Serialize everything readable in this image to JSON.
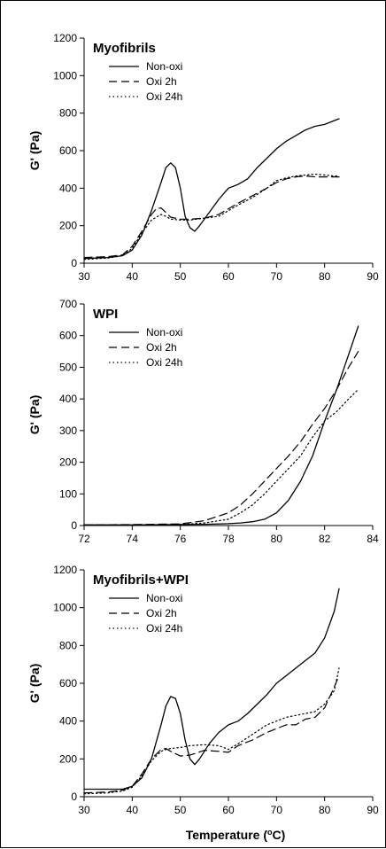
{
  "figure": {
    "xlabel_prefix": "Temperature (",
    "xlabel_sup": "o",
    "xlabel_suffix": "C)"
  },
  "chart_data": [
    {
      "type": "line",
      "title": "Myofibrils",
      "ylabel": "G' (Pa)",
      "xlabel": "",
      "xlim": [
        30,
        90
      ],
      "ylim": [
        0,
        1200
      ],
      "xticks": [
        30,
        40,
        50,
        60,
        70,
        80,
        90
      ],
      "yticks": [
        0,
        200,
        400,
        600,
        800,
        1000,
        1200
      ],
      "grid": false,
      "legend": "top-left",
      "series": [
        {
          "name": "Non-oxi",
          "style": "solid",
          "x": [
            30,
            35,
            38,
            40,
            42,
            44,
            46,
            47,
            48,
            49,
            50,
            51,
            52,
            53,
            54,
            56,
            58,
            60,
            62,
            64,
            66,
            68,
            70,
            72,
            74,
            76,
            78,
            80,
            82,
            83
          ],
          "y": [
            25,
            30,
            40,
            70,
            150,
            280,
            430,
            510,
            535,
            510,
            400,
            250,
            190,
            170,
            200,
            270,
            340,
            400,
            420,
            450,
            510,
            560,
            610,
            650,
            680,
            710,
            730,
            740,
            760,
            770
          ]
        },
        {
          "name": "Oxi 2h",
          "style": "dash",
          "x": [
            30,
            35,
            38,
            40,
            42,
            44,
            45,
            46,
            47,
            48,
            50,
            52,
            55,
            58,
            60,
            62,
            65,
            68,
            70,
            72,
            74,
            76,
            78,
            80,
            82,
            83
          ],
          "y": [
            30,
            35,
            45,
            90,
            170,
            260,
            290,
            295,
            270,
            245,
            235,
            235,
            240,
            260,
            290,
            320,
            360,
            400,
            430,
            450,
            460,
            465,
            460,
            460,
            460,
            460
          ]
        },
        {
          "name": "Oxi 24h",
          "style": "dot",
          "x": [
            30,
            35,
            38,
            40,
            42,
            44,
            46,
            47,
            48,
            50,
            52,
            55,
            58,
            60,
            62,
            65,
            68,
            70,
            72,
            74,
            76,
            78,
            80,
            82,
            83
          ],
          "y": [
            20,
            28,
            40,
            80,
            160,
            230,
            260,
            250,
            235,
            230,
            230,
            240,
            250,
            280,
            310,
            350,
            400,
            440,
            455,
            465,
            470,
            475,
            470,
            465,
            465
          ]
        }
      ]
    },
    {
      "type": "line",
      "title": "WPI",
      "ylabel": "G' (Pa)",
      "xlabel": "",
      "xlim": [
        72,
        84
      ],
      "ylim": [
        0,
        700
      ],
      "xticks": [
        72,
        74,
        76,
        78,
        80,
        82,
        84
      ],
      "yticks": [
        0,
        100,
        200,
        300,
        400,
        500,
        600,
        700
      ],
      "grid": false,
      "legend": "top-left",
      "series": [
        {
          "name": "Non-oxi",
          "style": "solid",
          "x": [
            72,
            74,
            76,
            77,
            78,
            78.5,
            79,
            79.5,
            80,
            80.5,
            81,
            81.5,
            82,
            82.5,
            83,
            83.4
          ],
          "y": [
            2,
            2,
            3,
            4,
            6,
            8,
            12,
            20,
            40,
            80,
            140,
            220,
            330,
            430,
            540,
            630
          ]
        },
        {
          "name": "Oxi 2h",
          "style": "dash",
          "x": [
            72,
            74,
            76,
            77,
            78,
            78.5,
            79,
            79.5,
            80,
            80.5,
            81,
            81.5,
            82,
            82.5,
            83,
            83.4
          ],
          "y": [
            2,
            3,
            5,
            15,
            40,
            65,
            100,
            140,
            180,
            220,
            265,
            320,
            370,
            430,
            500,
            550
          ]
        },
        {
          "name": "Oxi 24h",
          "style": "dot",
          "x": [
            72,
            74,
            76,
            77,
            78,
            78.5,
            79,
            79.5,
            80,
            80.5,
            81,
            81.5,
            82,
            82.5,
            83,
            83.4
          ],
          "y": [
            2,
            2,
            3,
            8,
            20,
            40,
            65,
            100,
            140,
            180,
            220,
            280,
            330,
            360,
            400,
            430
          ]
        }
      ]
    },
    {
      "type": "line",
      "title": "Myofibrils+WPI",
      "ylabel": "G' (Pa)",
      "xlabel": "",
      "xlim": [
        30,
        90
      ],
      "ylim": [
        0,
        1200
      ],
      "xticks": [
        30,
        40,
        50,
        60,
        70,
        80,
        90
      ],
      "yticks": [
        0,
        200,
        400,
        600,
        800,
        1000,
        1200
      ],
      "grid": false,
      "legend": "top-left",
      "series": [
        {
          "name": "Non-oxi",
          "style": "solid",
          "x": [
            30,
            35,
            38,
            40,
            42,
            44,
            46,
            47,
            48,
            49,
            50,
            51,
            52,
            53,
            54,
            56,
            58,
            60,
            62,
            64,
            66,
            68,
            70,
            72,
            74,
            76,
            78,
            80,
            82,
            83
          ],
          "y": [
            40,
            40,
            40,
            55,
            100,
            200,
            380,
            480,
            530,
            520,
            440,
            300,
            200,
            170,
            200,
            280,
            340,
            380,
            400,
            440,
            490,
            540,
            600,
            640,
            680,
            720,
            760,
            840,
            980,
            1100
          ]
        },
        {
          "name": "Oxi 2h",
          "style": "dash",
          "x": [
            30,
            35,
            38,
            40,
            42,
            44,
            46,
            47,
            48,
            50,
            52,
            55,
            58,
            60,
            62,
            65,
            68,
            70,
            72,
            74,
            76,
            78,
            80,
            82,
            83
          ],
          "y": [
            20,
            25,
            35,
            55,
            120,
            200,
            250,
            255,
            240,
            215,
            220,
            245,
            240,
            235,
            270,
            300,
            340,
            360,
            380,
            380,
            410,
            420,
            470,
            580,
            640
          ]
        },
        {
          "name": "Oxi 24h",
          "style": "dot",
          "x": [
            30,
            35,
            38,
            40,
            42,
            44,
            46,
            47,
            48,
            50,
            52,
            55,
            58,
            60,
            62,
            65,
            68,
            70,
            72,
            74,
            76,
            78,
            80,
            82,
            83
          ],
          "y": [
            15,
            20,
            30,
            50,
            110,
            190,
            240,
            250,
            255,
            260,
            270,
            275,
            270,
            250,
            280,
            330,
            380,
            400,
            420,
            430,
            440,
            450,
            490,
            560,
            680
          ]
        }
      ]
    }
  ]
}
